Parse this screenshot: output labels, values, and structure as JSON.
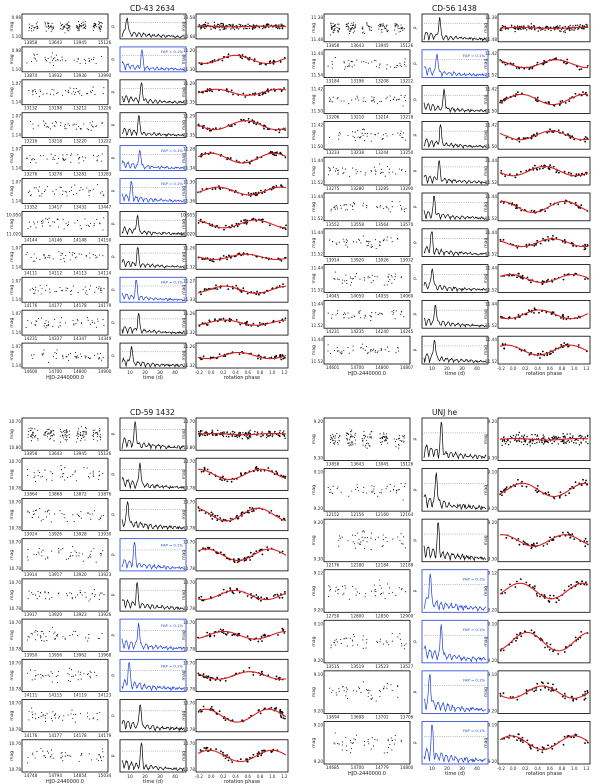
{
  "figure": {
    "background": "#ffffff",
    "colors": {
      "ink": "#000000",
      "periodogram_highlight": "#1f3fd6",
      "fit_curve": "#d62020",
      "frame": "#000000"
    },
    "columns": [
      "light-curve",
      "periodogram",
      "phased-light-curve"
    ]
  },
  "chart_data": [
    {
      "type": "scatter",
      "title": "CD-43 2634",
      "ylabel_lc": "mag",
      "ylabel_pg": "P",
      "ylabel_ph": "mag",
      "xlabel_lc": "HJD-2440000.0",
      "xlabel_pg": "time (d)",
      "xlabel_ph": "rotation phase",
      "pg_ticks": [
        "10",
        "20",
        "30",
        "40"
      ],
      "ph_ticks": [
        "-0.2",
        "0.0",
        "0.2",
        "0.4",
        "0.6",
        "0.8",
        "1.0",
        "1.2"
      ],
      "rows": [
        {
          "lc_x": [
            "13858",
            "13643",
            "13945",
            "15126"
          ],
          "lc_y": [
            "0.98",
            "1.10"
          ],
          "ph_y": [
            "10.58",
            "10.68"
          ],
          "highlight": false,
          "fap": ""
        },
        {
          "lc_x": [
            "13874",
            "13932",
            "13936",
            "13990"
          ],
          "lc_y": [
            "0.98",
            "1.10"
          ],
          "ph_y": [
            "11.20",
            "11.30"
          ],
          "highlight": true,
          "fap": "FAP = 0.1%"
        },
        {
          "lc_x": [
            "13132",
            "13198",
            "13212",
            "13226"
          ],
          "lc_y": [
            "1.07",
            "1.14"
          ],
          "ph_y": [
            "11.29",
            "11.35"
          ],
          "highlight": false,
          "fap": ""
        },
        {
          "lc_x": [
            "13216",
            "13218",
            "13220",
            "13222"
          ],
          "lc_y": [
            "1.07",
            "1.14"
          ],
          "ph_y": [
            "11.29",
            "11.35"
          ],
          "highlight": false,
          "fap": ""
        },
        {
          "lc_x": [
            "13276",
            "13278",
            "13281",
            "13283"
          ],
          "lc_y": [
            "1.07",
            "1.14"
          ],
          "ph_y": [
            "11.28",
            "11.34"
          ],
          "highlight": true,
          "fap": "FAP = 0.1%"
        },
        {
          "lc_x": [
            "13352",
            "13417",
            "13432",
            "13447"
          ],
          "lc_y": [
            "1.07",
            "1.14"
          ],
          "ph_y": [
            "11.30",
            "11.36"
          ],
          "highlight": true,
          "fap": "FAP = 0.1%"
        },
        {
          "lc_x": [
            "14144",
            "14146",
            "14148",
            "14150"
          ],
          "lc_y": [
            "10.950",
            "11.020"
          ],
          "ph_y": [
            "10.955",
            "11.020"
          ],
          "highlight": false,
          "fap": ""
        },
        {
          "lc_x": [
            "14111",
            "14112",
            "14113",
            "14114"
          ],
          "lc_y": [
            "1.07",
            "1.14"
          ],
          "ph_y": [
            "11.26",
            "11.32"
          ],
          "highlight": false,
          "fap": ""
        },
        {
          "lc_x": [
            "14176",
            "14177",
            "14178",
            "14179"
          ],
          "lc_y": [
            "1.07",
            "1.14"
          ],
          "ph_y": [
            "11.27",
            "11.33"
          ],
          "highlight": true,
          "fap": "FAP = 0.1%"
        },
        {
          "lc_x": [
            "14231",
            "14337",
            "14347",
            "14349"
          ],
          "lc_y": [
            "1.07",
            "1.14"
          ],
          "ph_y": [
            "11.26",
            "11.32"
          ],
          "highlight": false,
          "fap": ""
        },
        {
          "lc_x": [
            "14600",
            "14700",
            "14800",
            "14900"
          ],
          "lc_y": [
            "1.07",
            "1.14"
          ],
          "ph_y": [
            "11.26",
            "11.32"
          ],
          "highlight": false,
          "fap": ""
        }
      ]
    },
    {
      "type": "scatter",
      "title": "CD-56 1438",
      "ylabel_lc": "mag",
      "ylabel_pg": "P",
      "ylabel_ph": "mag",
      "xlabel_lc": "HJD-2440000.0",
      "xlabel_pg": "time (d)",
      "xlabel_ph": "rotation phase",
      "pg_ticks": [
        "10",
        "20",
        "30",
        "40"
      ],
      "ph_ticks": [
        "-0.2",
        "0.0",
        "0.2",
        "0.4",
        "0.6",
        "0.8",
        "1.0",
        "1.2"
      ],
      "rows": [
        {
          "lc_x": [
            "13858",
            "13643",
            "13945",
            "15126"
          ],
          "lc_y": [
            "11.38",
            "11.48"
          ],
          "ph_y": [
            "11.38",
            "11.48"
          ],
          "highlight": false,
          "fap": ""
        },
        {
          "lc_x": [
            "13184",
            "13196",
            "13208",
            "13222"
          ],
          "lc_y": [
            "11.44",
            "11.54"
          ],
          "ph_y": [
            "11.42",
            "11.52"
          ],
          "highlight": true,
          "fap": "FAP = 0.1%"
        },
        {
          "lc_x": [
            "13206",
            "13210",
            "13214",
            "13218"
          ],
          "lc_y": [
            "11.42",
            "11.50"
          ],
          "ph_y": [
            "11.42",
            "11.50"
          ],
          "highlight": false,
          "fap": ""
        },
        {
          "lc_x": [
            "13233",
            "13238",
            "13244",
            "13250"
          ],
          "lc_y": [
            "11.42",
            "11.50"
          ],
          "ph_y": [
            "11.42",
            "11.50"
          ],
          "highlight": false,
          "fap": ""
        },
        {
          "lc_x": [
            "13275",
            "13280",
            "13285",
            "13290"
          ],
          "lc_y": [
            "11.44",
            "11.52"
          ],
          "ph_y": [
            "11.44",
            "11.52"
          ],
          "highlight": false,
          "fap": ""
        },
        {
          "lc_x": [
            "13552",
            "13558",
            "13564",
            "13570"
          ],
          "lc_y": [
            "11.44",
            "11.52"
          ],
          "ph_y": [
            "11.44",
            "11.52"
          ],
          "highlight": false,
          "fap": ""
        },
        {
          "lc_x": [
            "13914",
            "13920",
            "13926",
            "13932"
          ],
          "lc_y": [
            "11.44",
            "11.52"
          ],
          "ph_y": [
            "11.44",
            "11.52"
          ],
          "highlight": false,
          "fap": ""
        },
        {
          "lc_x": [
            "14045",
            "14050",
            "14055",
            "14060"
          ],
          "lc_y": [
            "11.44",
            "11.52"
          ],
          "ph_y": [
            "11.44",
            "11.52"
          ],
          "highlight": false,
          "fap": ""
        },
        {
          "lc_x": [
            "14231",
            "14235",
            "14240",
            "14245"
          ],
          "lc_y": [
            "11.44",
            "11.52"
          ],
          "ph_y": [
            "11.44",
            "11.52"
          ],
          "highlight": false,
          "fap": ""
        },
        {
          "lc_x": [
            "14601",
            "14700",
            "14800",
            "14807"
          ],
          "lc_y": [
            "11.44",
            "11.52"
          ],
          "ph_y": [
            "11.44",
            "11.52"
          ],
          "highlight": false,
          "fap": ""
        }
      ]
    },
    {
      "type": "scatter",
      "title": "CD-59 1432",
      "ylabel_lc": "mag",
      "ylabel_pg": "P",
      "ylabel_ph": "mag",
      "xlabel_lc": "HJD-2440000.0",
      "xlabel_pg": "time (d)",
      "xlabel_ph": "rotation phase",
      "pg_ticks": [
        "10",
        "20",
        "30",
        "40"
      ],
      "ph_ticks": [
        "-0.2",
        "0.0",
        "0.2",
        "0.4",
        "0.6",
        "0.8",
        "1.0",
        "1.2"
      ],
      "rows": [
        {
          "lc_x": [
            "13858",
            "13643",
            "13945",
            "15126"
          ],
          "lc_y": [
            "10.70",
            "10.80"
          ],
          "ph_y": [
            "10.70",
            "10.80"
          ],
          "highlight": false,
          "fap": ""
        },
        {
          "lc_x": [
            "13864",
            "13868",
            "13872",
            "13876"
          ],
          "lc_y": [
            "10.70",
            "10.78"
          ],
          "ph_y": [
            "10.70",
            "10.78"
          ],
          "highlight": false,
          "fap": ""
        },
        {
          "lc_x": [
            "13924",
            "13926",
            "13928",
            "13930"
          ],
          "lc_y": [
            "10.70",
            "10.78"
          ],
          "ph_y": [
            "10.70",
            "10.78"
          ],
          "highlight": false,
          "fap": ""
        },
        {
          "lc_x": [
            "13914",
            "13917",
            "13920",
            "13923"
          ],
          "lc_y": [
            "10.70",
            "10.78"
          ],
          "ph_y": [
            "10.70",
            "10.78"
          ],
          "highlight": true,
          "fap": "FAP = 0.1%"
        },
        {
          "lc_x": [
            "13917",
            "13920",
            "13923",
            "13926"
          ],
          "lc_y": [
            "10.70",
            "10.78"
          ],
          "ph_y": [
            "10.70",
            "10.78"
          ],
          "highlight": false,
          "fap": ""
        },
        {
          "lc_x": [
            "13950",
            "13956",
            "13962",
            "13968"
          ],
          "lc_y": [
            "10.70",
            "10.78"
          ],
          "ph_y": [
            "10.70",
            "10.78"
          ],
          "highlight": true,
          "fap": "FAP = 0.1%"
        },
        {
          "lc_x": [
            "14111",
            "14115",
            "14119",
            "14123"
          ],
          "lc_y": [
            "10.70",
            "10.78"
          ],
          "ph_y": [
            "10.70",
            "10.78"
          ],
          "highlight": true,
          "fap": "FAP = 0.1%"
        },
        {
          "lc_x": [
            "14176",
            "14177",
            "14178",
            "14179"
          ],
          "lc_y": [
            "10.70",
            "10.78"
          ],
          "ph_y": [
            "10.70",
            "10.78"
          ],
          "highlight": false,
          "fap": ""
        },
        {
          "lc_x": [
            "14748",
            "14794",
            "14854",
            "15034"
          ],
          "lc_y": [
            "10.70",
            "10.78"
          ],
          "ph_y": [
            "10.70",
            "10.78"
          ],
          "highlight": false,
          "fap": ""
        }
      ]
    },
    {
      "type": "scatter",
      "title": "UNJ he",
      "ylabel_lc": "mag",
      "ylabel_pg": "P",
      "ylabel_ph": "mag",
      "xlabel_lc": "HJD-2440000.0",
      "xlabel_pg": "time (d)",
      "xlabel_ph": "rotation phase",
      "pg_ticks": [
        "10",
        "20",
        "30",
        "40"
      ],
      "ph_ticks": [
        "-0.2",
        "0.0",
        "0.2",
        "0.4",
        "0.6",
        "0.8",
        "1.0",
        "1.2"
      ],
      "rows": [
        {
          "lc_x": [
            "13858",
            "13643",
            "13945",
            "15126"
          ],
          "lc_y": [
            "9.20",
            "9.30"
          ],
          "ph_y": [
            "9.20",
            "9.30"
          ],
          "highlight": false,
          "fap": ""
        },
        {
          "lc_x": [
            "12152",
            "12156",
            "12160",
            "12164"
          ],
          "lc_y": [
            "9.10",
            "9.20"
          ],
          "ph_y": [
            "9.10",
            "9.20"
          ],
          "highlight": false,
          "fap": ""
        },
        {
          "lc_x": [
            "12176",
            "12180",
            "12184",
            "12188"
          ],
          "lc_y": [
            "9.20",
            "9.30"
          ],
          "ph_y": [
            "9.20",
            "9.30"
          ],
          "highlight": false,
          "fap": ""
        },
        {
          "lc_x": [
            "12750",
            "12800",
            "12850",
            "12900"
          ],
          "lc_y": [
            "9.12",
            "9.20"
          ],
          "ph_y": [
            "9.12",
            "9.20"
          ],
          "highlight": true,
          "fap": "FAP = 0.1%"
        },
        {
          "lc_x": [
            "13515",
            "13519",
            "13523",
            "13527"
          ],
          "lc_y": [
            "9.10",
            "9.20"
          ],
          "ph_y": [
            "9.10",
            "9.20"
          ],
          "highlight": true,
          "fap": "FAP = 0.1%"
        },
        {
          "lc_x": [
            "13694",
            "13698",
            "13702",
            "13706"
          ],
          "lc_y": [
            "9.10",
            "9.20"
          ],
          "ph_y": [
            "9.10",
            "9.20"
          ],
          "highlight": true,
          "fap": "FAP = 0.1%"
        },
        {
          "lc_x": [
            "14685",
            "14700",
            "14779",
            "14800"
          ],
          "lc_y": [
            "9.10",
            "9.20"
          ],
          "ph_y": [
            "9.10",
            "9.20"
          ],
          "highlight": true,
          "fap": "FAP = 0.1%"
        }
      ]
    }
  ]
}
